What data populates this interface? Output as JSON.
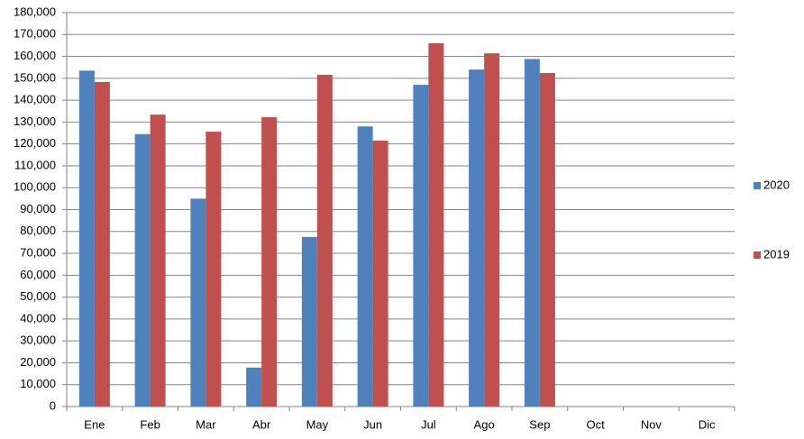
{
  "chart_data": {
    "type": "bar",
    "categories": [
      "Ene",
      "Feb",
      "Mar",
      "Abr",
      "May",
      "Jun",
      "Jul",
      "Ago",
      "Sep",
      "Oct",
      "Nov",
      "Dic"
    ],
    "series": [
      {
        "name": "2020",
        "color": "#4f81bd",
        "values": [
          153500,
          124500,
          95000,
          17800,
          77500,
          128000,
          147000,
          154000,
          158800,
          null,
          null,
          null
        ]
      },
      {
        "name": "2019",
        "color": "#c0504d",
        "values": [
          148300,
          133400,
          125600,
          132200,
          151600,
          121500,
          166000,
          161400,
          152400,
          null,
          null,
          null
        ]
      }
    ],
    "ylim": [
      0,
      180000
    ],
    "yticks": [
      0,
      {
        "value": 10000,
        "label": "10,000"
      },
      {
        "value": 20000,
        "label": "20,000"
      },
      {
        "value": 30000,
        "label": "30,000"
      },
      {
        "value": 40000,
        "label": "40,000"
      },
      {
        "value": 50000,
        "label": "50,000"
      },
      {
        "value": 60000,
        "label": "60,000"
      },
      {
        "value": 70000,
        "label": "70,000"
      },
      {
        "value": 80000,
        "label": "80,000"
      },
      {
        "value": 90000,
        "label": "90,000"
      },
      {
        "value": 100000,
        "label": "100,000"
      },
      {
        "value": 110000,
        "label": "110,000"
      },
      {
        "value": 120000,
        "label": "120,000"
      },
      {
        "value": 130000,
        "label": "130,000"
      },
      {
        "value": 140000,
        "label": "140,000"
      },
      {
        "value": 150000,
        "label": "150,000"
      },
      {
        "value": 160000,
        "label": "160,000"
      },
      {
        "value": 170000,
        "label": "170,000"
      },
      {
        "value": 180000,
        "label": "180,000"
      }
    ],
    "grid": true,
    "legend": "right"
  }
}
